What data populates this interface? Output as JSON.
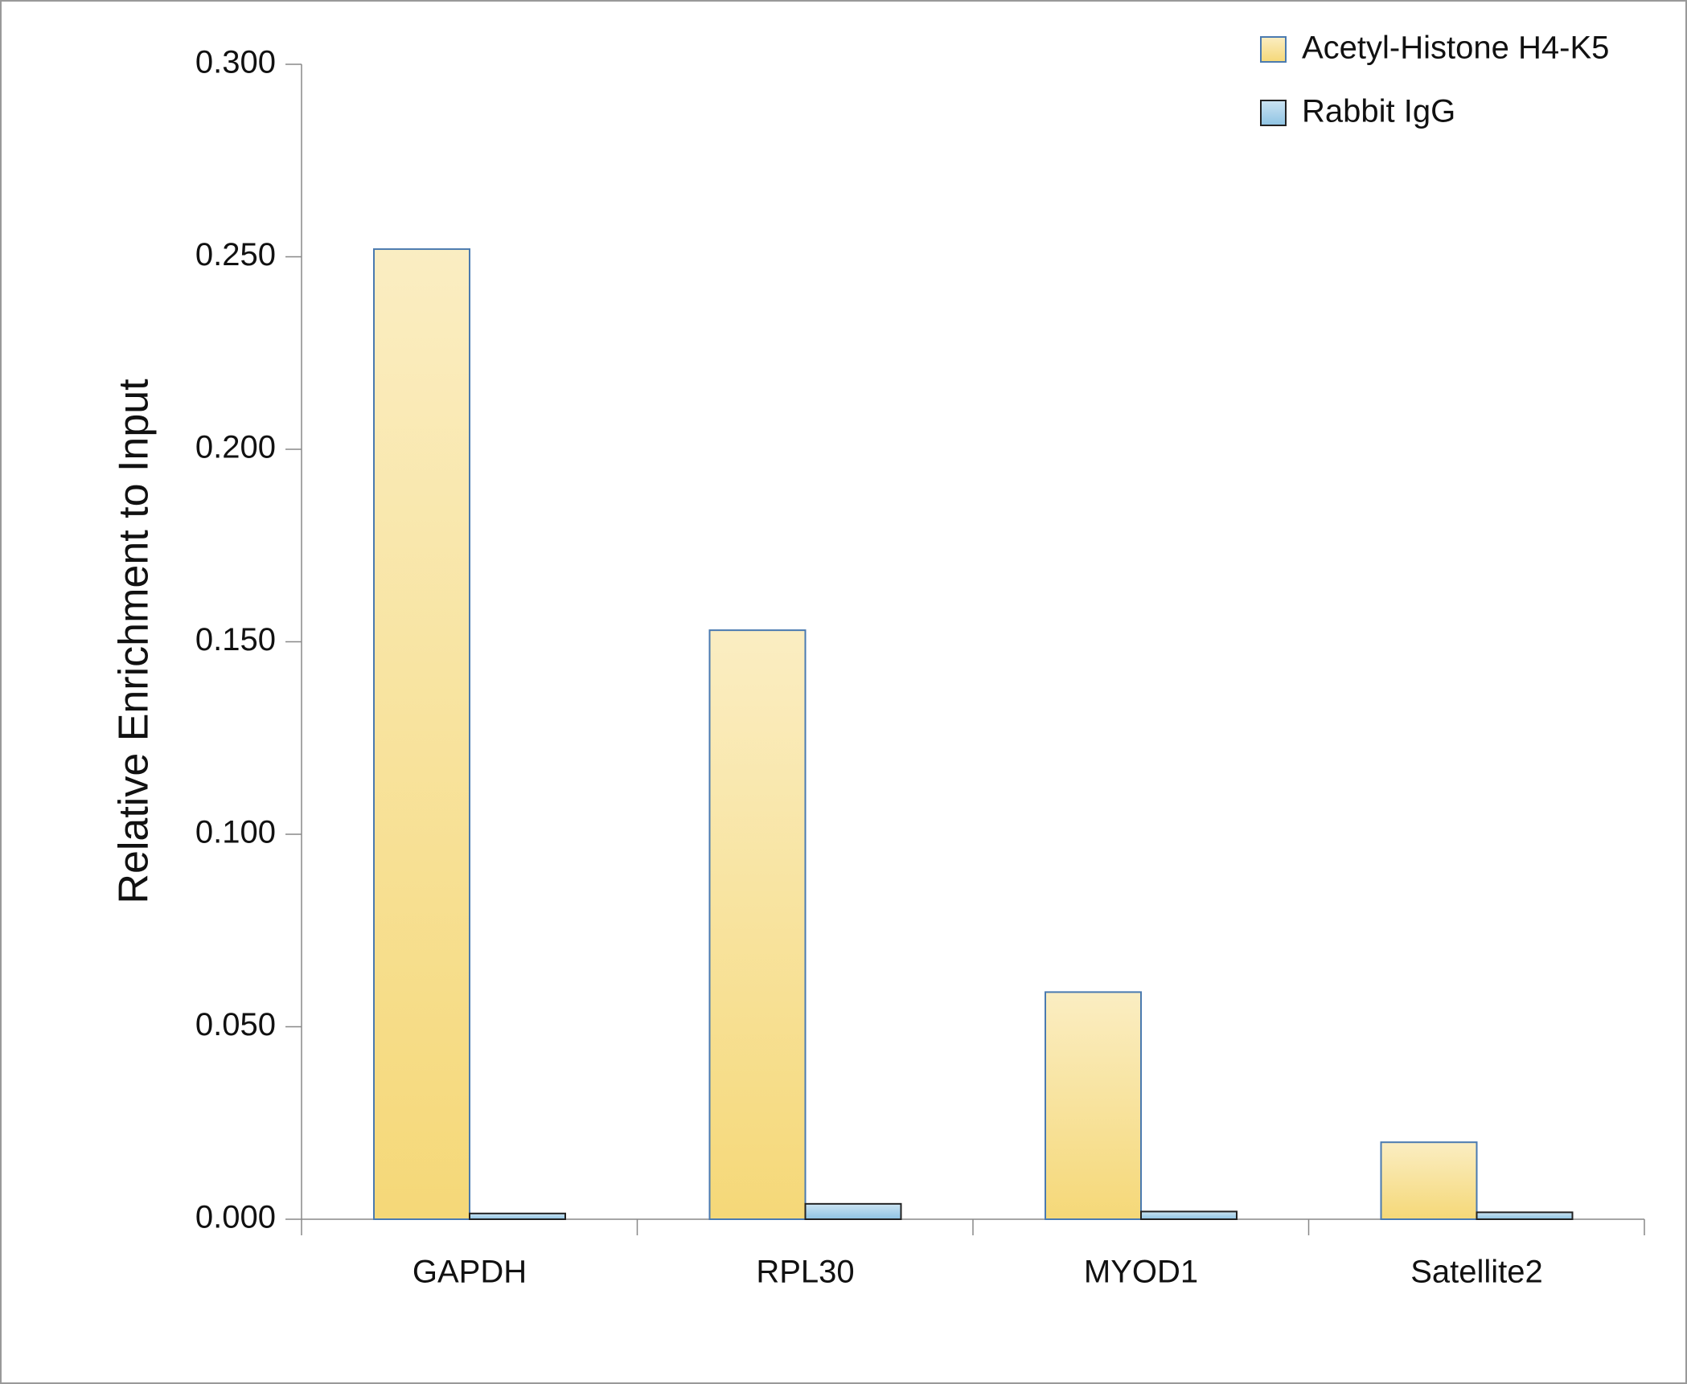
{
  "chart_data": {
    "type": "bar",
    "y_label": "Relative Enrichment to Input",
    "categories": [
      "GAPDH",
      "RPL30",
      "MYOD1",
      "Satellite2"
    ],
    "series": [
      {
        "name": "Acetyl-Histone H4-K5",
        "color": "#f5d878",
        "stroke": "#4a7ab0",
        "values": [
          0.252,
          0.153,
          0.059,
          0.02
        ]
      },
      {
        "name": "Rabbit IgG",
        "color": "#8ec3e3",
        "stroke": "#222222",
        "values": [
          0.0015,
          0.004,
          0.002,
          0.0018
        ]
      }
    ],
    "ylim": [
      0,
      0.3
    ],
    "yticks": [
      {
        "value": 0,
        "label": "0.000"
      },
      {
        "value": 0.05,
        "label": "0.050"
      },
      {
        "value": 0.1,
        "label": "0.100"
      },
      {
        "value": 0.15,
        "label": "0.150"
      },
      {
        "value": 0.2,
        "label": "0.200"
      },
      {
        "value": 0.25,
        "label": "0.250"
      },
      {
        "value": 0.3,
        "label": "0.300"
      }
    ],
    "legend": "top-right"
  }
}
